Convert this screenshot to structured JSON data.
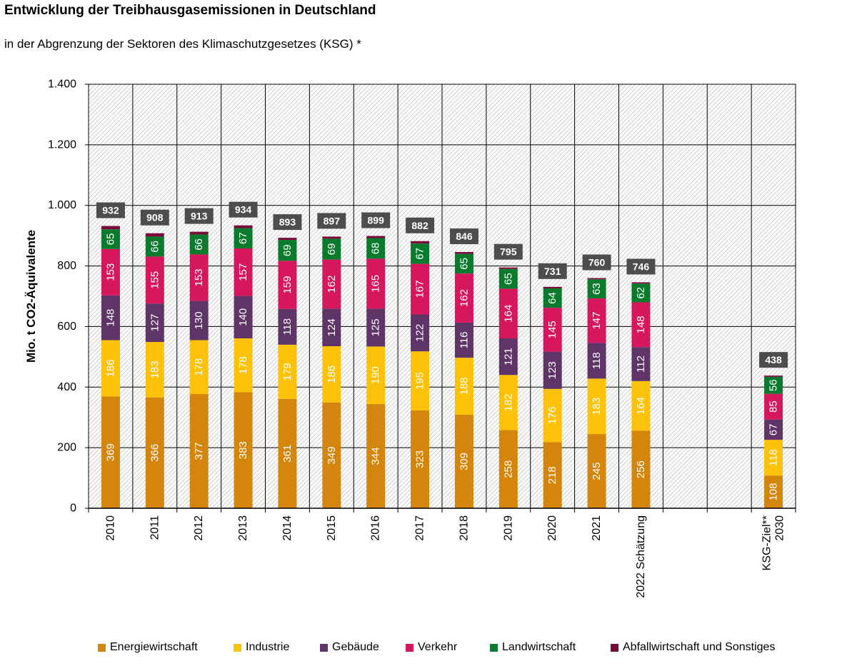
{
  "title": "Entwicklung der Treibhausgasemissionen in Deutschland",
  "subtitle": "in der Abgrenzung der Sektoren des Klimaschutzgesetzes (KSG) *",
  "chart_data": {
    "type": "bar",
    "stacked": true,
    "ylabel": "Mio. t CO2-Äquivalente",
    "ylim": [
      0,
      1400
    ],
    "yticks": [
      0,
      200,
      400,
      600,
      800,
      1000,
      1200,
      1400
    ],
    "ytick_labels": [
      "0",
      "200",
      "400",
      "600",
      "800",
      "1.000",
      "1.200",
      "1.400"
    ],
    "grid": true,
    "legend_position": "bottom",
    "categories": [
      [
        "2010"
      ],
      [
        "2011"
      ],
      [
        "2012"
      ],
      [
        "2013"
      ],
      [
        "2014"
      ],
      [
        "2015"
      ],
      [
        "2016"
      ],
      [
        "2017"
      ],
      [
        "2018"
      ],
      [
        "2019"
      ],
      [
        "2020"
      ],
      [
        "2021"
      ],
      [
        "2022 Schätzung"
      ],
      [],
      [],
      [
        "KSG-Ziel**",
        "2030"
      ]
    ],
    "totals": [
      932,
      908,
      913,
      934,
      893,
      897,
      899,
      882,
      846,
      795,
      731,
      760,
      746,
      null,
      null,
      438
    ],
    "series": [
      {
        "name": "Energiewirtschaft",
        "color": "#d4850b",
        "label_color": "#ffffff",
        "values": [
          369,
          366,
          377,
          383,
          361,
          349,
          344,
          323,
          309,
          258,
          218,
          245,
          256,
          null,
          null,
          108
        ]
      },
      {
        "name": "Industrie",
        "color": "#fcc20a",
        "label_color": "#ffffff",
        "values": [
          186,
          183,
          178,
          178,
          179,
          186,
          190,
          195,
          188,
          182,
          176,
          183,
          164,
          null,
          null,
          118
        ]
      },
      {
        "name": "Gebäude",
        "color": "#5e3566",
        "label_color": "#ffffff",
        "values": [
          148,
          127,
          130,
          140,
          118,
          124,
          125,
          122,
          116,
          121,
          123,
          118,
          112,
          null,
          null,
          67
        ]
      },
      {
        "name": "Verkehr",
        "color": "#d6175e",
        "label_color": "#ffffff",
        "values": [
          153,
          155,
          153,
          157,
          159,
          162,
          165,
          167,
          162,
          164,
          145,
          147,
          148,
          null,
          null,
          85
        ]
      },
      {
        "name": "Landwirtschaft",
        "color": "#0a7a2c",
        "label_color": "#ffffff",
        "values": [
          65,
          66,
          66,
          67,
          69,
          69,
          68,
          67,
          65,
          65,
          64,
          63,
          62,
          null,
          null,
          56
        ]
      },
      {
        "name": "Abfallwirtschaft und Sonstiges",
        "color": "#7b0a3c",
        "label_color": "#ffffff",
        "values": [
          11,
          11,
          9,
          9,
          7,
          7,
          7,
          8,
          6,
          5,
          5,
          4,
          4,
          null,
          null,
          4
        ]
      }
    ]
  }
}
